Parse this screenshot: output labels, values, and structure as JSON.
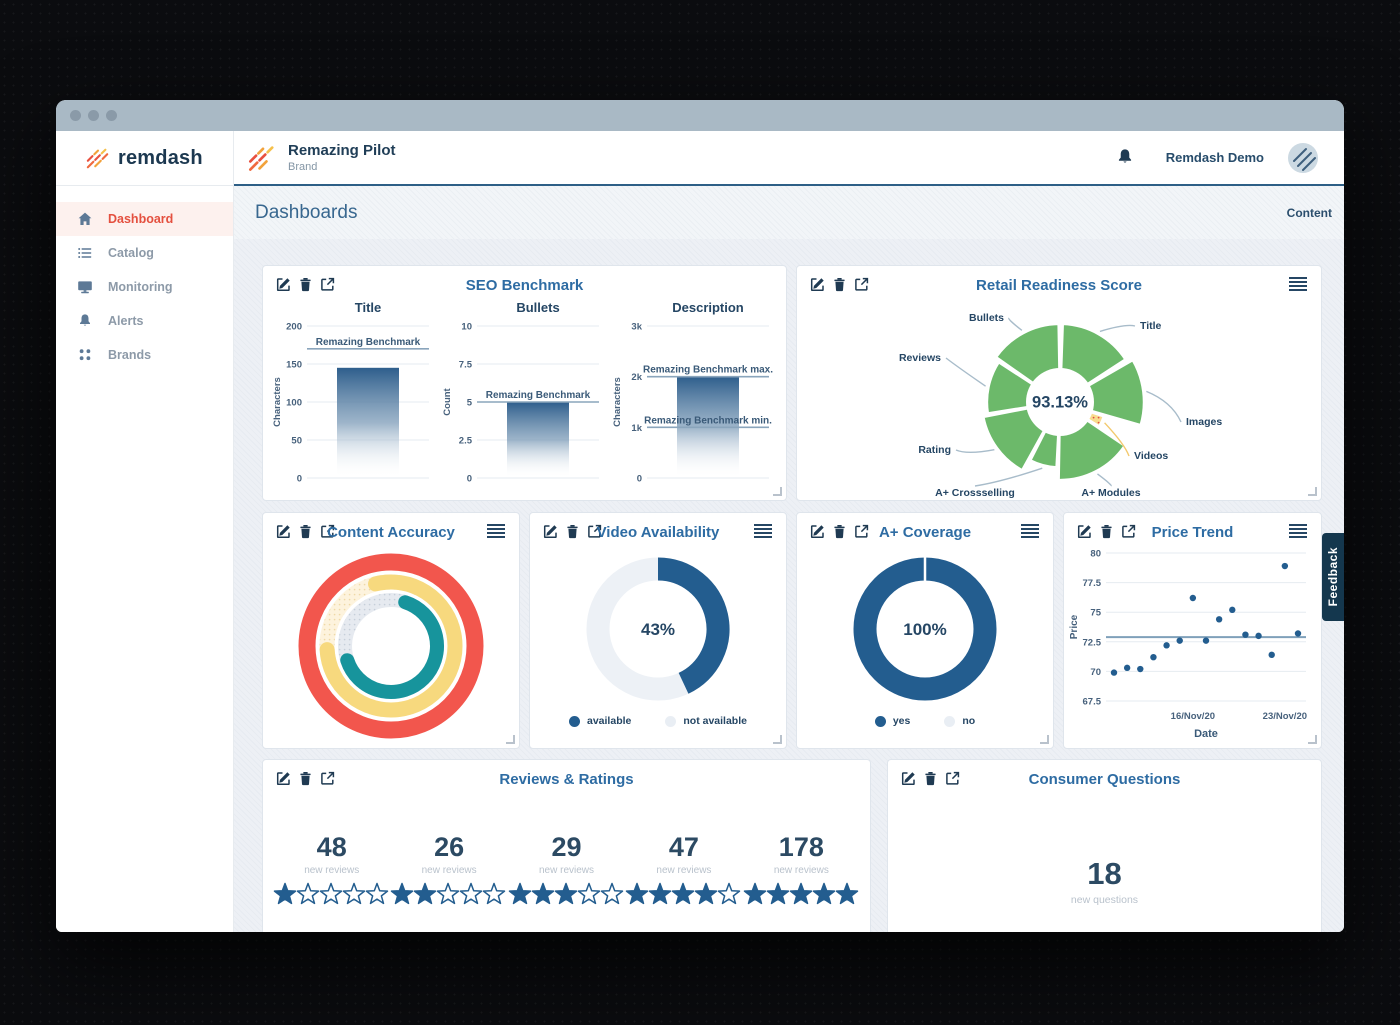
{
  "sidebar": {
    "logo_text": "remdash",
    "items": [
      {
        "label": "Dashboard",
        "icon": "home-icon",
        "active": true
      },
      {
        "label": "Catalog",
        "icon": "list-icon",
        "active": false
      },
      {
        "label": "Monitoring",
        "icon": "monitor-icon",
        "active": false
      },
      {
        "label": "Alerts",
        "icon": "bell-icon",
        "active": false
      },
      {
        "label": "Brands",
        "icon": "grid-dots-icon",
        "active": false
      }
    ]
  },
  "header": {
    "brand_name": "Remazing Pilot",
    "brand_sub": "Brand",
    "user_name": "Remdash Demo"
  },
  "subheader": {
    "title": "Dashboards",
    "right_label": "Content"
  },
  "feedback_tab": "Feedback",
  "colors": {
    "accent_blue": "#235d8f",
    "title_blue": "#2e6ca3",
    "navy": "#254664",
    "green": "#6cb96a",
    "yellow": "#f7d97e",
    "red": "#f2564d",
    "teal": "#17949c",
    "active_red": "#e4503f",
    "track_light": "#edf1f6"
  },
  "chart_data": [
    {
      "id": "seo_benchmark",
      "type": "bar",
      "title": "SEO Benchmark",
      "panels": [
        {
          "title": "Title",
          "ylabel": "Characters",
          "ymax": 200,
          "yticks": [
            0,
            50,
            100,
            150,
            200
          ],
          "ytick_labels": [
            "0",
            "50",
            "100",
            "150",
            "200"
          ],
          "value": 145,
          "ref_lines": [
            {
              "label": "Remazing Benchmark",
              "value": 170
            }
          ]
        },
        {
          "title": "Bullets",
          "ylabel": "Count",
          "ymax": 10,
          "yticks": [
            0,
            2.5,
            5,
            7.5,
            10
          ],
          "ytick_labels": [
            "0",
            "2.5",
            "5",
            "7.5",
            "10"
          ],
          "value": 5,
          "ref_lines": [
            {
              "label": "Remazing Benchmark",
              "value": 5
            }
          ]
        },
        {
          "title": "Description",
          "ylabel": "Characters",
          "ymax": 3000,
          "yticks": [
            0,
            1000,
            2000,
            3000
          ],
          "ytick_labels": [
            "0",
            "1k",
            "2k",
            "3k"
          ],
          "value": 2000,
          "ref_lines": [
            {
              "label": "Remazing Benchmark max.",
              "value": 2000
            },
            {
              "label": "Remazing Benchmark min.",
              "value": 1000
            }
          ]
        }
      ]
    },
    {
      "id": "retail_readiness",
      "type": "pie",
      "title": "Retail Readiness Score",
      "center_label": "93.13%",
      "segments": [
        {
          "label": "Title",
          "start": 2,
          "end": 57,
          "radius": 0.93,
          "color": "green"
        },
        {
          "label": "Images",
          "start": 60,
          "end": 106,
          "radius": 1.0,
          "color": "green"
        },
        {
          "label": "Videos",
          "start": 108,
          "end": 122,
          "radius": 0.55,
          "color": "yellow-dotted"
        },
        {
          "label": "A+ Modules",
          "start": 124,
          "end": 181,
          "radius": 0.93,
          "color": "green"
        },
        {
          "label": "A+ Crossselling",
          "start": 183,
          "end": 207,
          "radius": 0.78,
          "color": "green"
        },
        {
          "label": "Rating",
          "start": 209,
          "end": 259,
          "radius": 0.93,
          "color": "green"
        },
        {
          "label": "Reviews",
          "start": 261,
          "end": 303,
          "radius": 0.87,
          "color": "green"
        },
        {
          "label": "Bullets",
          "start": 305,
          "end": 359,
          "radius": 0.93,
          "color": "green"
        }
      ]
    },
    {
      "id": "content_accuracy",
      "type": "pie",
      "title": "Content Accuracy",
      "rings": [
        {
          "name": "outer",
          "color": "#f2564d",
          "pct": 100,
          "track": "#f2564d"
        },
        {
          "name": "middle",
          "color": "#f7d97e",
          "pct": 78,
          "track": "#fdf3dd",
          "start_deg": -14
        },
        {
          "name": "inner",
          "color": "#17949c",
          "pct": 65,
          "track": "#e2e8ee",
          "start_deg": 18
        }
      ]
    },
    {
      "id": "video_availability",
      "type": "pie",
      "title": "Video Availability",
      "value": 43,
      "center_label": "43%",
      "legend": [
        {
          "label": "available",
          "filled": true
        },
        {
          "label": "not available",
          "filled": false
        }
      ]
    },
    {
      "id": "aplus_coverage",
      "type": "pie",
      "title": "A+ Coverage",
      "value": 100,
      "center_label": "100%",
      "legend": [
        {
          "label": "yes",
          "filled": true
        },
        {
          "label": "no",
          "filled": false
        }
      ]
    },
    {
      "id": "price_trend",
      "type": "scatter",
      "title": "Price Trend",
      "xlabel": "Date",
      "ylabel": "Price",
      "ylim": [
        67.5,
        80
      ],
      "yticks": [
        67.5,
        70,
        72.5,
        75,
        77.5,
        80
      ],
      "values": [
        69.9,
        70.3,
        70.2,
        71.2,
        72.2,
        72.6,
        76.2,
        72.6,
        74.4,
        75.2,
        73.1,
        73.0,
        71.4,
        78.9,
        73.2
      ],
      "ref_line": 72.9,
      "xticks": [
        {
          "index": 6,
          "label": "16/Nov/20"
        },
        {
          "index": 13,
          "label": "23/Nov/20"
        }
      ]
    },
    {
      "id": "reviews_ratings",
      "type": "table",
      "title": "Reviews & Ratings",
      "groups": [
        {
          "count": "48",
          "label": "new reviews",
          "stars": 1
        },
        {
          "count": "26",
          "label": "new reviews",
          "stars": 2
        },
        {
          "count": "29",
          "label": "new reviews",
          "stars": 3
        },
        {
          "count": "47",
          "label": "new reviews",
          "stars": 4
        },
        {
          "count": "178",
          "label": "new reviews",
          "stars": 5
        }
      ]
    },
    {
      "id": "consumer_questions",
      "type": "table",
      "title": "Consumer Questions",
      "value": "18",
      "label": "new questions"
    }
  ]
}
